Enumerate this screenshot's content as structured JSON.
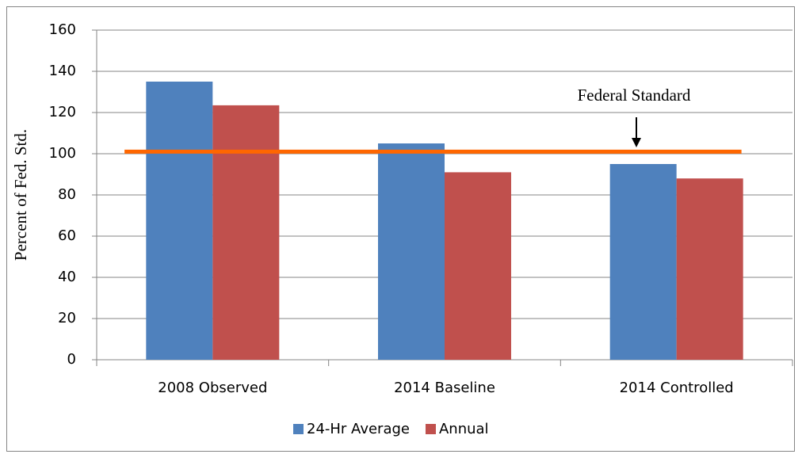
{
  "chart_data": {
    "type": "bar",
    "y_axis_label": "Percent of Fed. Std.",
    "categories": [
      "2008 Observed",
      "2014 Baseline",
      "2014 Controlled"
    ],
    "series": [
      {
        "name": "24-Hr Average",
        "color": "#4f81bd",
        "values": [
          135,
          105,
          95
        ]
      },
      {
        "name": "Annual",
        "color": "#c0504d",
        "values": [
          123.5,
          91,
          88
        ]
      }
    ],
    "reference_line": {
      "value": 101,
      "label": "Federal Standard",
      "color": "#ff6600"
    },
    "ylim": [
      0,
      160
    ],
    "yticks": [
      0,
      20,
      40,
      60,
      80,
      100,
      120,
      140,
      160
    ],
    "grid": true,
    "legend": "bottom"
  }
}
